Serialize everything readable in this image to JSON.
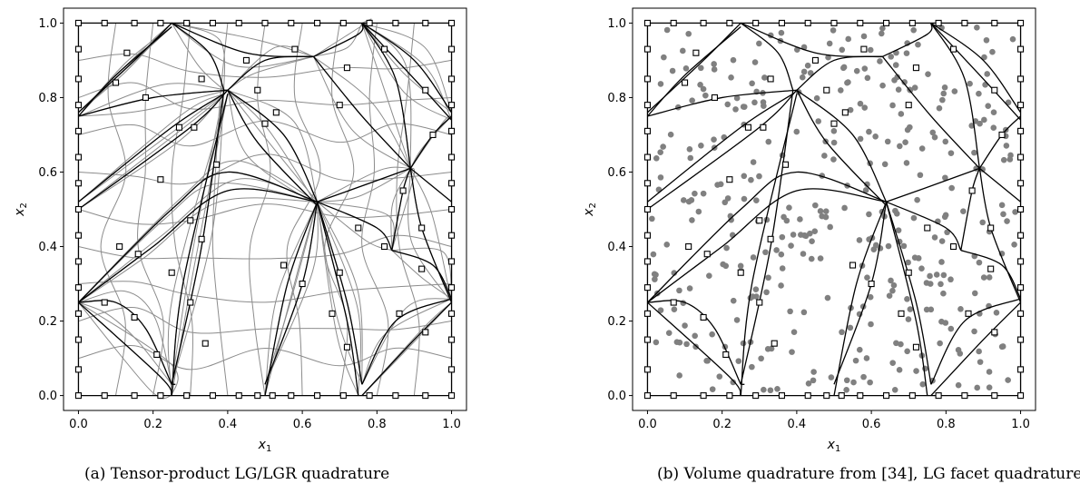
{
  "chart_data": [
    {
      "type": "scatter",
      "caption": "(a) Tensor-product LG/LGR quadrature",
      "xlabel": "x",
      "xlabel_sub": "1",
      "ylabel": "x",
      "ylabel_sub": "2",
      "xlim": [
        -0.04,
        1.04
      ],
      "ylim": [
        -0.04,
        1.04
      ],
      "xticks": [
        "0.0",
        "0.2",
        "0.4",
        "0.6",
        "0.8",
        "1.0"
      ],
      "yticks": [
        "0.0",
        "0.2",
        "0.4",
        "0.6",
        "0.8",
        "1.0"
      ],
      "colors": {
        "mesh": "#000000",
        "fine_grid": "#8c8c8c",
        "marker_edge": "#000000"
      },
      "series": [
        {
          "kind": "mesh_edges",
          "edges": [
            [
              [
                0.0,
                0.0
              ],
              [
                1.0,
                0.0
              ]
            ],
            [
              [
                1.0,
                0.0
              ],
              [
                1.0,
                1.0
              ]
            ],
            [
              [
                1.0,
                1.0
              ],
              [
                0.0,
                1.0
              ]
            ],
            [
              [
                0.0,
                1.0
              ],
              [
                0.0,
                0.0
              ]
            ],
            [
              [
                0.0,
                0.25
              ],
              [
                0.22,
                0.05
              ],
              [
                0.25,
                0.0
              ]
            ],
            [
              [
                0.0,
                0.25
              ],
              [
                0.1,
                0.25
              ],
              [
                0.18,
                0.18
              ],
              [
                0.25,
                0.03
              ]
            ],
            [
              [
                0.0,
                0.25
              ],
              [
                0.2,
                0.4
              ],
              [
                0.4,
                0.55
              ],
              [
                0.64,
                0.52
              ]
            ],
            [
              [
                0.0,
                0.25
              ],
              [
                0.25,
                0.5
              ],
              [
                0.4,
                0.6
              ],
              [
                0.64,
                0.52
              ]
            ],
            [
              [
                0.0,
                0.5
              ],
              [
                0.3,
                0.72
              ],
              [
                0.4,
                0.82
              ]
            ],
            [
              [
                0.0,
                0.52
              ],
              [
                0.25,
                0.72
              ],
              [
                0.39,
                0.81
              ]
            ],
            [
              [
                0.0,
                0.75
              ],
              [
                0.2,
                0.8
              ],
              [
                0.4,
                0.82
              ]
            ],
            [
              [
                0.0,
                0.75
              ],
              [
                0.1,
                0.86
              ],
              [
                0.25,
                0.99
              ]
            ],
            [
              [
                0.0,
                0.76
              ],
              [
                0.15,
                0.9
              ],
              [
                0.25,
                1.0
              ]
            ],
            [
              [
                0.25,
                0.0
              ],
              [
                0.28,
                0.3
              ],
              [
                0.4,
                0.81
              ]
            ],
            [
              [
                0.25,
                0.03
              ],
              [
                0.33,
                0.4
              ],
              [
                0.39,
                0.82
              ]
            ],
            [
              [
                0.25,
                1.0
              ],
              [
                0.35,
                0.92
              ],
              [
                0.39,
                0.82
              ]
            ],
            [
              [
                0.25,
                1.0
              ],
              [
                0.45,
                0.92
              ],
              [
                0.63,
                0.91
              ]
            ],
            [
              [
                0.4,
                0.82
              ],
              [
                0.5,
                0.9
              ],
              [
                0.63,
                0.91
              ]
            ],
            [
              [
                0.4,
                0.82
              ],
              [
                0.55,
                0.7
              ],
              [
                0.64,
                0.52
              ]
            ],
            [
              [
                0.4,
                0.82
              ],
              [
                0.48,
                0.68
              ],
              [
                0.64,
                0.51
              ]
            ],
            [
              [
                0.5,
                0.0
              ],
              [
                0.56,
                0.3
              ],
              [
                0.64,
                0.52
              ]
            ],
            [
              [
                0.5,
                0.03
              ],
              [
                0.6,
                0.3
              ],
              [
                0.64,
                0.52
              ]
            ],
            [
              [
                0.64,
                0.52
              ],
              [
                0.72,
                0.2
              ],
              [
                0.75,
                0.0
              ]
            ],
            [
              [
                0.64,
                0.52
              ],
              [
                0.72,
                0.25
              ],
              [
                0.76,
                0.03
              ]
            ],
            [
              [
                0.64,
                0.52
              ],
              [
                0.8,
                0.45
              ],
              [
                0.84,
                0.39
              ]
            ],
            [
              [
                0.64,
                0.52
              ],
              [
                0.78,
                0.57
              ],
              [
                0.89,
                0.61
              ]
            ],
            [
              [
                0.63,
                0.91
              ],
              [
                0.76,
                0.75
              ],
              [
                0.89,
                0.61
              ]
            ],
            [
              [
                0.63,
                0.91
              ],
              [
                0.75,
                0.97
              ],
              [
                0.76,
                1.0
              ]
            ],
            [
              [
                0.76,
                1.0
              ],
              [
                0.85,
                0.85
              ],
              [
                0.89,
                0.61
              ]
            ],
            [
              [
                0.76,
                1.0
              ],
              [
                0.9,
                0.9
              ],
              [
                1.0,
                0.76
              ]
            ],
            [
              [
                0.76,
                1.0
              ],
              [
                0.9,
                0.85
              ],
              [
                1.0,
                0.74
              ]
            ],
            [
              [
                0.89,
                0.61
              ],
              [
                0.95,
                0.7
              ],
              [
                1.0,
                0.75
              ]
            ],
            [
              [
                0.89,
                0.61
              ],
              [
                0.92,
                0.45
              ],
              [
                1.0,
                0.25
              ]
            ],
            [
              [
                0.84,
                0.39
              ],
              [
                0.95,
                0.35
              ],
              [
                1.0,
                0.26
              ]
            ],
            [
              [
                0.84,
                0.39
              ],
              [
                0.87,
                0.55
              ],
              [
                0.89,
                0.61
              ]
            ],
            [
              [
                0.76,
                0.03
              ],
              [
                0.85,
                0.2
              ],
              [
                1.0,
                0.26
              ]
            ],
            [
              [
                0.76,
                0.0
              ],
              [
                0.9,
                0.15
              ],
              [
                1.0,
                0.25
              ]
            ],
            [
              [
                0.89,
                0.61
              ],
              [
                1.0,
                0.52
              ]
            ],
            [
              [
                0.25,
                0.03
              ],
              [
                0.26,
                0.03
              ]
            ]
          ]
        },
        {
          "kind": "fine_grid",
          "note": "gray tensor-product quadrature lines"
        },
        {
          "kind": "square_markers",
          "points": [
            [
              0.0,
              0.0
            ],
            [
              0.07,
              0.0
            ],
            [
              0.15,
              0.0
            ],
            [
              0.22,
              0.0
            ],
            [
              0.29,
              0.0
            ],
            [
              0.36,
              0.0
            ],
            [
              0.43,
              0.0
            ],
            [
              0.48,
              0.0
            ],
            [
              0.52,
              0.0
            ],
            [
              0.57,
              0.0
            ],
            [
              0.64,
              0.0
            ],
            [
              0.71,
              0.0
            ],
            [
              0.78,
              0.0
            ],
            [
              0.85,
              0.0
            ],
            [
              0.93,
              0.0
            ],
            [
              1.0,
              0.0
            ],
            [
              0.0,
              1.0
            ],
            [
              0.07,
              1.0
            ],
            [
              0.15,
              1.0
            ],
            [
              0.22,
              1.0
            ],
            [
              0.29,
              1.0
            ],
            [
              0.36,
              1.0
            ],
            [
              0.43,
              1.0
            ],
            [
              0.5,
              1.0
            ],
            [
              0.57,
              1.0
            ],
            [
              0.64,
              1.0
            ],
            [
              0.71,
              1.0
            ],
            [
              0.78,
              1.0
            ],
            [
              0.85,
              1.0
            ],
            [
              0.93,
              1.0
            ],
            [
              1.0,
              1.0
            ],
            [
              0.0,
              0.07
            ],
            [
              0.0,
              0.15
            ],
            [
              0.0,
              0.22
            ],
            [
              0.0,
              0.29
            ],
            [
              0.0,
              0.36
            ],
            [
              0.0,
              0.43
            ],
            [
              0.0,
              0.5
            ],
            [
              0.0,
              0.57
            ],
            [
              0.0,
              0.64
            ],
            [
              0.0,
              0.71
            ],
            [
              0.0,
              0.78
            ],
            [
              0.0,
              0.85
            ],
            [
              0.0,
              0.93
            ],
            [
              1.0,
              0.07
            ],
            [
              1.0,
              0.15
            ],
            [
              1.0,
              0.22
            ],
            [
              1.0,
              0.29
            ],
            [
              1.0,
              0.36
            ],
            [
              1.0,
              0.43
            ],
            [
              1.0,
              0.5
            ],
            [
              1.0,
              0.57
            ],
            [
              1.0,
              0.64
            ],
            [
              1.0,
              0.71
            ],
            [
              1.0,
              0.78
            ],
            [
              1.0,
              0.85
            ],
            [
              1.0,
              0.93
            ],
            [
              0.15,
              0.21
            ],
            [
              0.21,
              0.11
            ],
            [
              0.07,
              0.25
            ],
            [
              0.11,
              0.4
            ],
            [
              0.16,
              0.38
            ],
            [
              0.25,
              0.33
            ],
            [
              0.3,
              0.47
            ],
            [
              0.22,
              0.58
            ],
            [
              0.27,
              0.72
            ],
            [
              0.31,
              0.72
            ],
            [
              0.18,
              0.8
            ],
            [
              0.1,
              0.84
            ],
            [
              0.13,
              0.92
            ],
            [
              0.33,
              0.85
            ],
            [
              0.34,
              0.14
            ],
            [
              0.3,
              0.25
            ],
            [
              0.33,
              0.42
            ],
            [
              0.37,
              0.62
            ],
            [
              0.55,
              0.35
            ],
            [
              0.6,
              0.3
            ],
            [
              0.68,
              0.22
            ],
            [
              0.72,
              0.13
            ],
            [
              0.7,
              0.33
            ],
            [
              0.75,
              0.45
            ],
            [
              0.82,
              0.4
            ],
            [
              0.87,
              0.55
            ],
            [
              0.92,
              0.45
            ],
            [
              0.95,
              0.7
            ],
            [
              0.48,
              0.82
            ],
            [
              0.58,
              0.93
            ],
            [
              0.7,
              0.78
            ],
            [
              0.72,
              0.88
            ],
            [
              0.82,
              0.93
            ],
            [
              0.93,
              0.82
            ],
            [
              0.86,
              0.22
            ],
            [
              0.93,
              0.17
            ],
            [
              0.92,
              0.34
            ],
            [
              0.5,
              0.73
            ],
            [
              0.45,
              0.9
            ],
            [
              0.53,
              0.76
            ]
          ]
        }
      ]
    },
    {
      "type": "scatter",
      "caption": "(b) Volume quadrature from [34], LG facet quadrature",
      "xlabel": "x",
      "xlabel_sub": "1",
      "ylabel": "x",
      "ylabel_sub": "2",
      "xlim": [
        -0.04,
        1.04
      ],
      "ylim": [
        -0.04,
        1.04
      ],
      "xticks": [
        "0.0",
        "0.2",
        "0.4",
        "0.6",
        "0.8",
        "1.0"
      ],
      "yticks": [
        "0.0",
        "0.2",
        "0.4",
        "0.6",
        "0.8",
        "1.0"
      ],
      "colors": {
        "mesh": "#000000",
        "volume_points": "#808080",
        "marker_edge": "#000000"
      },
      "series": [
        {
          "kind": "mesh_edges",
          "same_as_panel": 0
        },
        {
          "kind": "square_markers",
          "same_as_panel": 0
        },
        {
          "kind": "volume_points",
          "note": "gray filled circles, many per cell"
        }
      ]
    }
  ]
}
